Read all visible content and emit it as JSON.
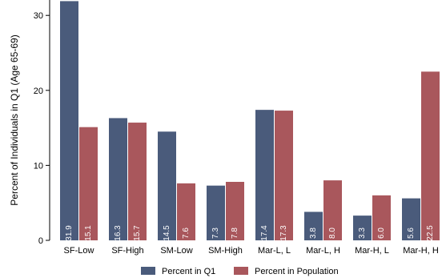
{
  "chart_data": {
    "type": "bar",
    "ylabel": "Percent of Individuals in Q1 (Age 65-69)",
    "categories": [
      "SF-Low",
      "SF-High",
      "SM-Low",
      "SM-High",
      "Mar-L, L",
      "Mar-L, H",
      "Mar-H, L",
      "Mar-H, H"
    ],
    "series": [
      {
        "name": "Percent in Q1",
        "color": "#4a5b7b",
        "values": [
          31.9,
          16.3,
          14.5,
          7.3,
          17.4,
          3.8,
          3.3,
          5.6
        ]
      },
      {
        "name": "Percent in Population",
        "color": "#a9575c",
        "values": [
          15.1,
          15.7,
          7.6,
          7.8,
          17.3,
          8.0,
          6.0,
          22.5
        ]
      }
    ],
    "ylim": [
      0,
      30
    ],
    "yticks": [
      0,
      10,
      20,
      30
    ],
    "legend_position": "bottom",
    "grid": false
  }
}
